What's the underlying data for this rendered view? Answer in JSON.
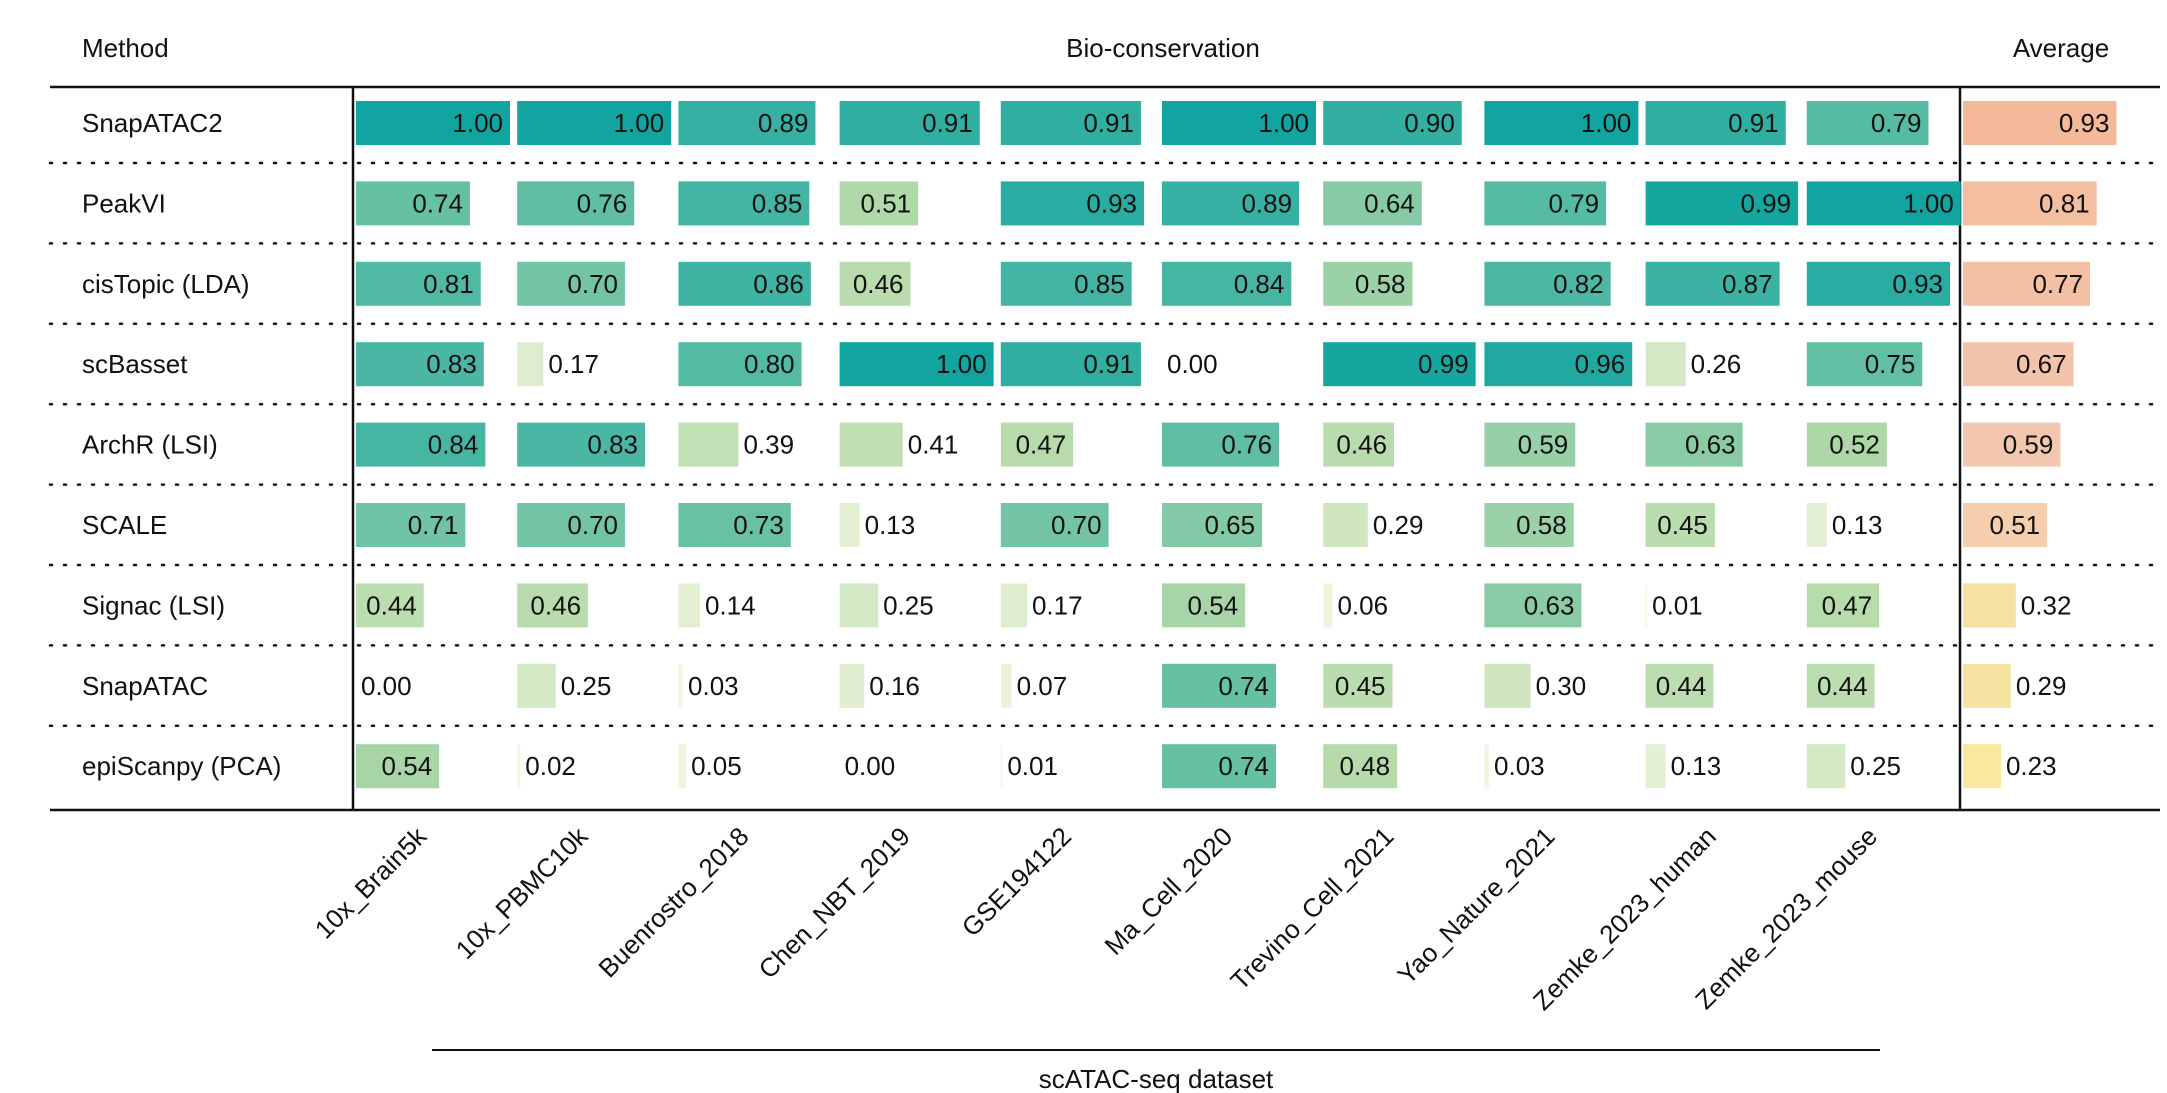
{
  "header": {
    "method_label": "Method",
    "group_label": "Bio-conservation",
    "average_label": "Average"
  },
  "footer": {
    "xaxis_label": "scATAC-seq dataset"
  },
  "colors": {
    "score_low": "#f4f8e2",
    "score_mid": "#b4d9a8",
    "score_high": "#12a5a0",
    "avg_low": "#f8ec9c",
    "avg_mid": "#f3c8b0",
    "avg_high": "#f4b898",
    "line": "#111111",
    "text": "#111111"
  },
  "chart_data": {
    "type": "table",
    "title": "Bio-conservation",
    "xlabel": "scATAC-seq dataset",
    "ylabel": "Method",
    "value_range": [
      0,
      1
    ],
    "datasets": [
      "10x_Brain5k",
      "10x_PBMC10k",
      "Buenrostro_2018",
      "Chen_NBT_2019",
      "GSE194122",
      "Ma_Cell_2020",
      "Trevino_Cell_2021",
      "Yao_Nature_2021",
      "Zemke_2023_human",
      "Zemke_2023_mouse"
    ],
    "methods": [
      {
        "name": "SnapATAC2",
        "scores": [
          "1.00",
          "1.00",
          "0.89",
          "0.91",
          "0.91",
          "1.00",
          "0.90",
          "1.00",
          "0.91",
          "0.79"
        ],
        "average": "0.93"
      },
      {
        "name": "PeakVI",
        "scores": [
          "0.74",
          "0.76",
          "0.85",
          "0.51",
          "0.93",
          "0.89",
          "0.64",
          "0.79",
          "0.99",
          "1.00"
        ],
        "average": "0.81"
      },
      {
        "name": "cisTopic (LDA)",
        "scores": [
          "0.81",
          "0.70",
          "0.86",
          "0.46",
          "0.85",
          "0.84",
          "0.58",
          "0.82",
          "0.87",
          "0.93"
        ],
        "average": "0.77"
      },
      {
        "name": "scBasset",
        "scores": [
          "0.83",
          "0.17",
          "0.80",
          "1.00",
          "0.91",
          "0.00",
          "0.99",
          "0.96",
          "0.26",
          "0.75"
        ],
        "average": "0.67"
      },
      {
        "name": "ArchR (LSI)",
        "scores": [
          "0.84",
          "0.83",
          "0.39",
          "0.41",
          "0.47",
          "0.76",
          "0.46",
          "0.59",
          "0.63",
          "0.52"
        ],
        "average": "0.59"
      },
      {
        "name": "SCALE",
        "scores": [
          "0.71",
          "0.70",
          "0.73",
          "0.13",
          "0.70",
          "0.65",
          "0.29",
          "0.58",
          "0.45",
          "0.13"
        ],
        "average": "0.51"
      },
      {
        "name": "Signac (LSI)",
        "scores": [
          "0.44",
          "0.46",
          "0.14",
          "0.25",
          "0.17",
          "0.54",
          "0.06",
          "0.63",
          "0.01",
          "0.47"
        ],
        "average": "0.32"
      },
      {
        "name": "SnapATAC",
        "scores": [
          "0.00",
          "0.25",
          "0.03",
          "0.16",
          "0.07",
          "0.74",
          "0.45",
          "0.30",
          "0.44",
          "0.44"
        ],
        "average": "0.29"
      },
      {
        "name": "epiScanpy (PCA)",
        "scores": [
          "0.54",
          "0.02",
          "0.05",
          "0.00",
          "0.01",
          "0.74",
          "0.48",
          "0.03",
          "0.13",
          "0.25"
        ],
        "average": "0.23"
      }
    ]
  }
}
